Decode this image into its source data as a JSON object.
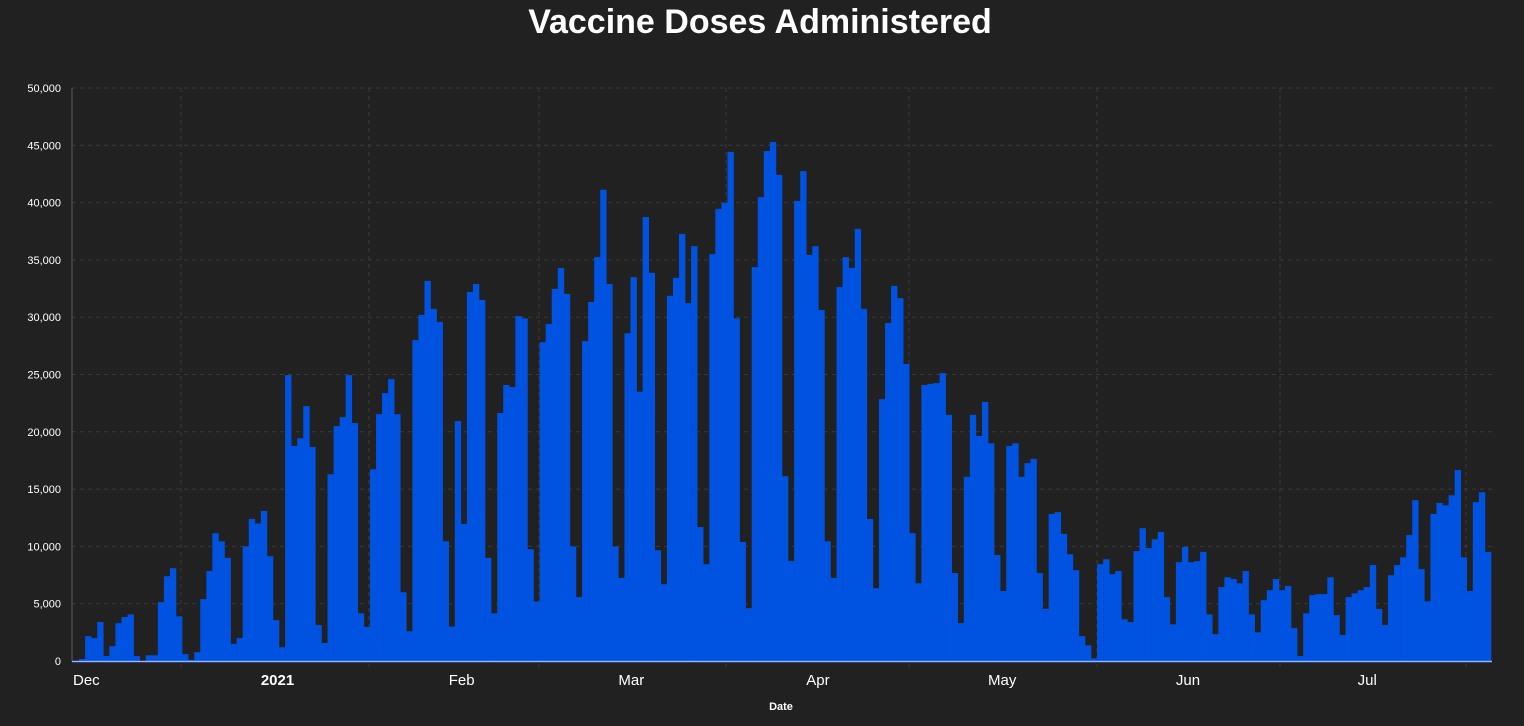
{
  "chart_data": {
    "type": "bar",
    "title": "Vaccine Doses Administered",
    "xlabel": "Date",
    "ylabel": "",
    "ylim": [
      0,
      50000
    ],
    "grid": true,
    "bar_color": "#0052e0",
    "start_date": "2020-12-01",
    "interval": "daily",
    "y_ticks": [
      "0",
      "5,000",
      "10,000",
      "15,000",
      "20,000",
      "25,000",
      "30,000",
      "35,000",
      "40,000",
      "45,000",
      "50,000"
    ],
    "x_ticks": [
      {
        "label": "Dec",
        "day": 0,
        "bold": false
      },
      {
        "label": "2021",
        "day": 31,
        "bold": true
      },
      {
        "label": "Feb",
        "day": 62,
        "bold": false
      },
      {
        "label": "Mar",
        "day": 90,
        "bold": false
      },
      {
        "label": "Apr",
        "day": 121,
        "bold": false
      },
      {
        "label": "May",
        "day": 151,
        "bold": false
      },
      {
        "label": "Jun",
        "day": 182,
        "bold": false
      },
      {
        "label": "Jul",
        "day": 212,
        "bold": false
      }
    ],
    "values": [
      0,
      170,
      2170,
      2000,
      3400,
      430,
      1300,
      3300,
      3840,
      4070,
      430,
      0,
      500,
      500,
      5140,
      7400,
      8100,
      3900,
      600,
      100,
      770,
      5400,
      7850,
      11150,
      10450,
      9000,
      1500,
      2000,
      10000,
      12400,
      12000,
      13100,
      9150,
      3570,
      1200,
      24950,
      18770,
      19440,
      22240,
      18670,
      3140,
      1570,
      16300,
      20500,
      21280,
      24950,
      20770,
      4170,
      2970,
      16730,
      21540,
      23380,
      24600,
      21540,
      6000,
      2600,
      28000,
      30200,
      33170,
      30730,
      29590,
      10450,
      3000,
      20940,
      11960,
      32200,
      32900,
      31500,
      9000,
      4170,
      21640,
      24080,
      23900,
      30100,
      29900,
      9750,
      5200,
      27820,
      29400,
      32470,
      34300,
      32030,
      10000,
      5580,
      27920,
      31330,
      35240,
      41120,
      32900,
      10000,
      7250,
      28600,
      33500,
      23500,
      38740,
      33870,
      9670,
      6700,
      31870,
      33430,
      37270,
      31230,
      36200,
      11690,
      8450,
      35500,
      39450,
      39980,
      44420,
      29900,
      10390,
      4610,
      34370,
      40480,
      44500,
      45290,
      42420,
      16130,
      8720,
      40150,
      42750,
      35440,
      36200,
      30630,
      10450,
      7250,
      32630,
      35240,
      34300,
      37710,
      30730,
      12390,
      6350,
      22850,
      29490,
      32730,
      31660,
      25920,
      11160,
      6780,
      24080,
      24180,
      24250,
      25120,
      21480,
      7680,
      3310,
      16070,
      21480,
      19640,
      22610,
      19000,
      9250,
      6110,
      18770,
      19000,
      16070,
      17270,
      17640,
      7680,
      4540,
      12830,
      12990,
      11090,
      9320,
      7920,
      2170,
      1370,
      230,
      8450,
      8880,
      7580,
      7850,
      3640,
      3400,
      9590,
      11590,
      9850,
      10620,
      11260,
      5580,
      3200,
      8620,
      9950,
      8620,
      8720,
      9520,
      4070,
      2340,
      6450,
      7310,
      7150,
      6780,
      7850,
      4070,
      2500,
      5310,
      6180,
      7150,
      6180,
      6550,
      2870,
      430,
      4170,
      5740,
      5840,
      5840,
      7310,
      4000,
      2270,
      5580,
      5910,
      6180,
      6450,
      8380,
      4540,
      3140,
      7480,
      8380,
      9050,
      10990,
      14030,
      8020,
      5210,
      12830,
      13790,
      13590,
      14460,
      16670,
      9050,
      6110,
      13860,
      14730,
      9520
    ]
  }
}
